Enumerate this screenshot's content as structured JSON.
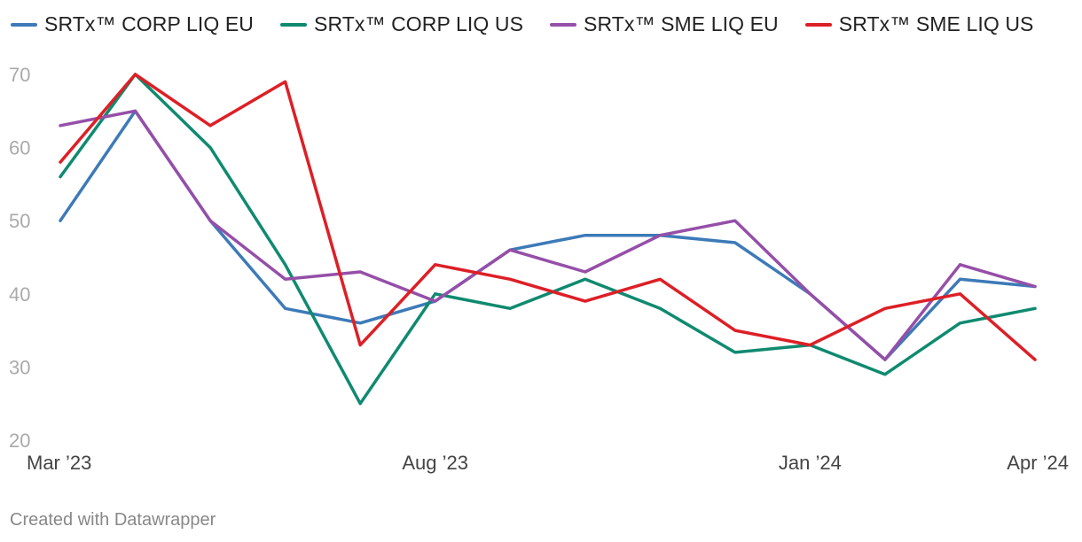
{
  "chart_data": {
    "type": "line",
    "title": "",
    "xlabel": "",
    "ylabel": "",
    "ylim": [
      20,
      70
    ],
    "yticks": [
      70,
      60,
      50,
      40,
      30,
      20
    ],
    "grid": false,
    "legend_position": "top-left",
    "x": [
      "Mar ’23",
      "Apr ’23",
      "May ’23",
      "Jun ’23",
      "Jul ’23",
      "Aug ’23",
      "Sep ’23",
      "Oct ’23",
      "Nov ’23",
      "Dec ’23",
      "Jan ’24",
      "Feb ’24",
      "Mar ’24",
      "Apr ’24"
    ],
    "x_tick_labels": [
      {
        "index": 0,
        "label": "Mar ’23"
      },
      {
        "index": 5,
        "label": "Aug ’23"
      },
      {
        "index": 10,
        "label": "Jan ’24"
      },
      {
        "index": 13,
        "label": "Apr ’24"
      }
    ],
    "series": [
      {
        "name": "SRTx™ CORP LIQ EU",
        "color": "#3d7ab8",
        "values": [
          50,
          65,
          50,
          38,
          36,
          39,
          46,
          48,
          48,
          47,
          40,
          31,
          42,
          41
        ]
      },
      {
        "name": "SRTx™ CORP LIQ US",
        "color": "#0f8a70",
        "values": [
          56,
          70,
          60,
          44,
          25,
          40,
          38,
          42,
          38,
          32,
          33,
          29,
          36,
          38
        ]
      },
      {
        "name": "SRTx™ SME LIQ EU",
        "color": "#954fa8",
        "values": [
          63,
          65,
          50,
          42,
          43,
          39,
          46,
          43,
          48,
          50,
          40,
          31,
          44,
          41
        ]
      },
      {
        "name": "SRTx™ SME LIQ US",
        "color": "#dd1f26",
        "values": [
          58,
          70,
          63,
          69,
          33,
          44,
          42,
          39,
          42,
          35,
          33,
          38,
          40,
          31
        ]
      }
    ]
  },
  "footer": {
    "credit": "Created with Datawrapper"
  }
}
